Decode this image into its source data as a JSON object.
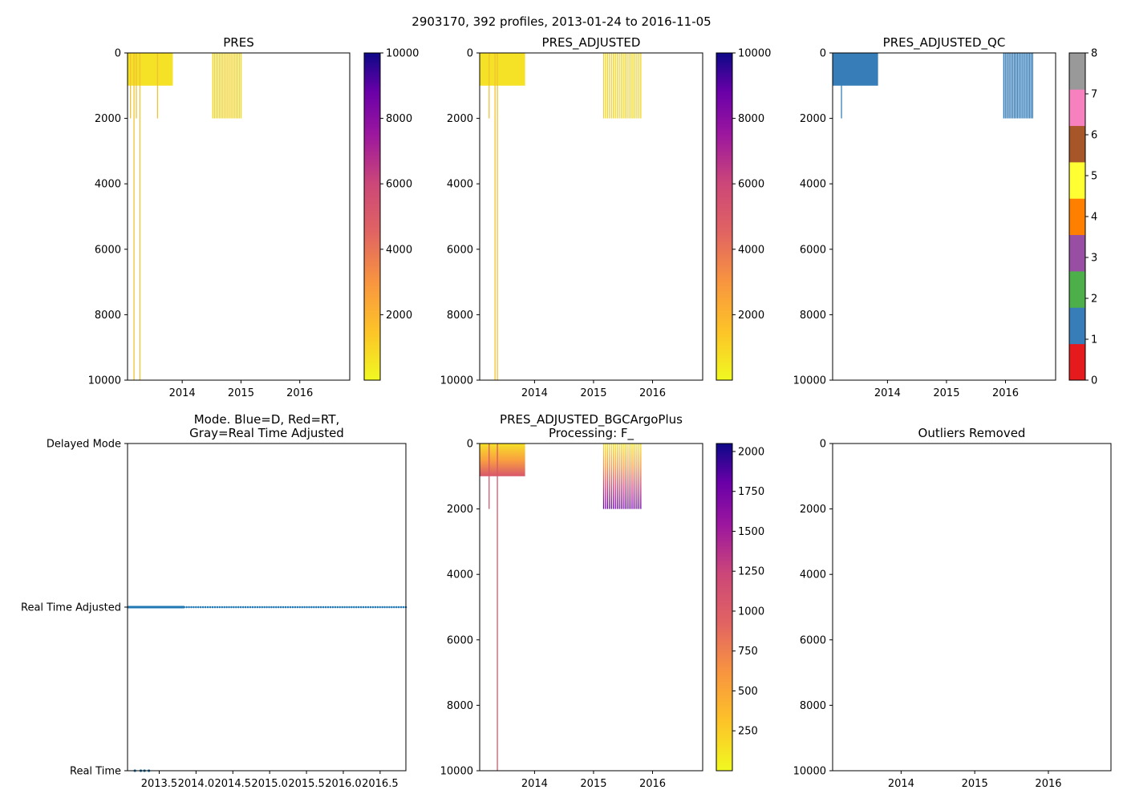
{
  "figure": {
    "suptitle": "2903170, 392 profiles, 2013-01-24 to 2016-11-05"
  },
  "chart_data": [
    {
      "id": "pres",
      "type": "heatmap",
      "title": [
        "PRES"
      ],
      "xlim": [
        2013.07,
        2016.85
      ],
      "ylim": [
        10000,
        0
      ],
      "x_ticks": [
        2014,
        2015,
        2016
      ],
      "x_tick_labels": [
        "2014",
        "2015",
        "2016"
      ],
      "y_ticks": [
        0,
        2000,
        4000,
        6000,
        8000,
        10000
      ],
      "y_tick_labels": [
        "0",
        "2000",
        "4000",
        "6000",
        "8000",
        "10000"
      ],
      "colorbar": {
        "type": "continuous",
        "cmap": "plasma_r",
        "range": [
          0,
          10000
        ],
        "ticks": [
          2000,
          4000,
          6000,
          8000,
          10000
        ],
        "tick_labels": [
          "2000",
          "4000",
          "6000",
          "8000",
          "10000"
        ]
      },
      "fill": "#f5e126",
      "blocks": [
        {
          "x0": 2013.07,
          "x1": 2013.84,
          "depth": 1000
        }
      ],
      "profiles": [
        {
          "x": 2013.12,
          "depth": 2000
        },
        {
          "x": 2013.18,
          "depth": 10000
        },
        {
          "x": 2013.22,
          "depth": 2000
        },
        {
          "x": 2013.28,
          "depth": 10000
        },
        {
          "x": 2013.58,
          "depth": 2000
        }
      ],
      "profile_group": {
        "x_start": 2014.52,
        "x_end": 2015.0,
        "count": 18,
        "depth": 2000,
        "color": "#f1d42a"
      }
    },
    {
      "id": "pres_adjusted",
      "type": "heatmap",
      "title": [
        "PRES_ADJUSTED"
      ],
      "xlim": [
        2013.07,
        2016.85
      ],
      "ylim": [
        10000,
        0
      ],
      "x_ticks": [
        2014,
        2015,
        2016
      ],
      "x_tick_labels": [
        "2014",
        "2015",
        "2016"
      ],
      "y_ticks": [
        0,
        2000,
        4000,
        6000,
        8000,
        10000
      ],
      "y_tick_labels": [
        "0",
        "2000",
        "4000",
        "6000",
        "8000",
        "10000"
      ],
      "colorbar": {
        "type": "continuous",
        "cmap": "plasma_r",
        "range": [
          0,
          10000
        ],
        "ticks": [
          2000,
          4000,
          6000,
          8000,
          10000
        ],
        "tick_labels": [
          "2000",
          "4000",
          "6000",
          "8000",
          "10000"
        ]
      },
      "fill": "#f5e126",
      "blocks": [
        {
          "x0": 2013.07,
          "x1": 2013.84,
          "depth": 1000
        }
      ],
      "profiles": [
        {
          "x": 2013.23,
          "depth": 2000
        },
        {
          "x": 2013.33,
          "depth": 10000
        },
        {
          "x": 2013.37,
          "depth": 10000
        }
      ],
      "profile_group": {
        "x_start": 2015.17,
        "x_end": 2015.8,
        "count": 20,
        "depth": 2000,
        "color": "#f1d42a"
      }
    },
    {
      "id": "pres_adjusted_qc",
      "type": "heatmap",
      "title": [
        "PRES_ADJUSTED_QC"
      ],
      "xlim": [
        2013.07,
        2016.85
      ],
      "ylim": [
        10000,
        0
      ],
      "x_ticks": [
        2014,
        2015,
        2016
      ],
      "x_tick_labels": [
        "2014",
        "2015",
        "2016"
      ],
      "y_ticks": [
        0,
        2000,
        4000,
        6000,
        8000,
        10000
      ],
      "y_tick_labels": [
        "0",
        "2000",
        "4000",
        "6000",
        "8000",
        "10000"
      ],
      "colorbar": {
        "type": "discrete",
        "range": [
          0,
          8
        ],
        "colors": [
          "#e41a1c",
          "#377eb8",
          "#4daf4a",
          "#984ea3",
          "#ff7f00",
          "#ffff33",
          "#a65628",
          "#f781bf",
          "#999999"
        ],
        "ticks": [
          0,
          1,
          2,
          3,
          4,
          5,
          6,
          7,
          8
        ],
        "tick_labels": [
          "0",
          "1",
          "2",
          "3",
          "4",
          "5",
          "6",
          "7",
          "8"
        ]
      },
      "fill": "#377eb8",
      "blocks": [
        {
          "x0": 2013.07,
          "x1": 2013.84,
          "depth": 1000
        }
      ],
      "profiles": [
        {
          "x": 2013.22,
          "depth": 2000
        }
      ],
      "profile_group": {
        "x_start": 2015.97,
        "x_end": 2016.46,
        "count": 20,
        "depth": 2000,
        "color": "#377eb8"
      }
    },
    {
      "id": "mode",
      "type": "scatter",
      "title": [
        "Mode. Blue=D, Red=RT,",
        "Gray=Real Time Adjusted"
      ],
      "xlim": [
        2013.07,
        2016.85
      ],
      "ylim": [
        0,
        2
      ],
      "x_ticks": [
        2013.5,
        2014.0,
        2014.5,
        2015.0,
        2015.5,
        2016.0,
        2016.5
      ],
      "x_tick_labels": [
        "2013.5",
        "2014.0",
        "2014.5",
        "2015.0",
        "2015.5",
        "2016.0",
        "2016.5"
      ],
      "y_ticks": [
        2,
        1,
        0
      ],
      "y_tick_labels": [
        "Delayed Mode",
        "Real Time Adjusted",
        "Real Time"
      ],
      "color": "#1f77b4",
      "series": [
        {
          "name": "Real Time Adjusted (dense)",
          "y": 1,
          "x_start": 2013.07,
          "x_end": 2013.84,
          "dense": true
        },
        {
          "name": "Real Time Adjusted",
          "y": 1,
          "x_start": 2013.84,
          "x_end": 2016.85,
          "count": 95
        },
        {
          "name": "Real Time",
          "y": 0,
          "x": [
            2013.17,
            2013.25,
            2013.3,
            2013.36
          ]
        }
      ]
    },
    {
      "id": "pres_adjusted_bgc",
      "type": "heatmap",
      "title": [
        "PRES_ADJUSTED_BGCArgoPlus",
        "Processing: F_"
      ],
      "xlim": [
        2013.07,
        2016.85
      ],
      "ylim": [
        10000,
        0
      ],
      "x_ticks": [
        2014,
        2015,
        2016
      ],
      "x_tick_labels": [
        "2014",
        "2015",
        "2016"
      ],
      "y_ticks": [
        0,
        2000,
        4000,
        6000,
        8000,
        10000
      ],
      "y_tick_labels": [
        "0",
        "2000",
        "4000",
        "6000",
        "8000",
        "10000"
      ],
      "colorbar": {
        "type": "continuous",
        "cmap": "plasma_r",
        "range": [
          0,
          2050
        ],
        "ticks": [
          250,
          500,
          750,
          1000,
          1250,
          1500,
          1750,
          2000
        ],
        "tick_labels": [
          "250",
          "500",
          "750",
          "1000",
          "1250",
          "1500",
          "1750",
          "2000"
        ]
      },
      "fill": "gradient",
      "blocks": [
        {
          "x0": 2013.07,
          "x1": 2013.84,
          "depth": 1000
        }
      ],
      "profiles": [
        {
          "x": 2013.23,
          "depth": 2000
        },
        {
          "x": 2013.37,
          "depth": 10000
        }
      ],
      "profile_group": {
        "x_start": 2015.17,
        "x_end": 2015.8,
        "count": 20,
        "depth": 2000,
        "color": "gradient"
      }
    },
    {
      "id": "outliers",
      "type": "heatmap",
      "title": [
        "Outliers Removed"
      ],
      "xlim": [
        2013.07,
        2016.85
      ],
      "ylim": [
        10000,
        0
      ],
      "x_ticks": [
        2014,
        2015,
        2016
      ],
      "x_tick_labels": [
        "2014",
        "2015",
        "2016"
      ],
      "y_ticks": [
        0,
        2000,
        4000,
        6000,
        8000,
        10000
      ],
      "y_tick_labels": [
        "0",
        "2000",
        "4000",
        "6000",
        "8000",
        "10000"
      ],
      "colorbar": null,
      "fill": "none",
      "blocks": [],
      "profiles": [],
      "profile_group": null
    }
  ]
}
